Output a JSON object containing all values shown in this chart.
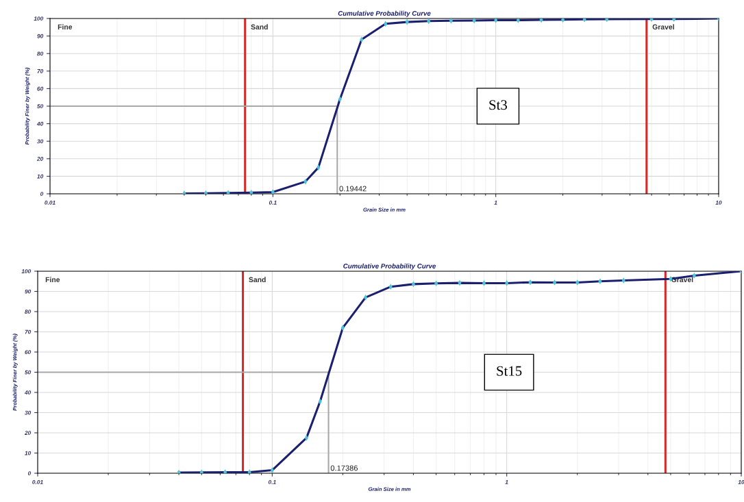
{
  "chart_data": [
    {
      "type": "line",
      "title": "Cumulative Probability Curve",
      "xlabel": "Grain Size in mm",
      "ylabel": "Probability Finer by Weight (%)",
      "log": "x",
      "grid": true,
      "marker": "diamond",
      "line_style": "solid",
      "xlim": [
        0.01,
        10
      ],
      "xticks": [
        0.01,
        0.1,
        1,
        10
      ],
      "ylim": [
        0,
        100
      ],
      "yticks": [
        0,
        10,
        20,
        30,
        40,
        50,
        60,
        70,
        80,
        90,
        100
      ],
      "series": [
        {
          "color": "#1a1f6e",
          "x": [
            0.04,
            0.05,
            0.063,
            0.08,
            0.1,
            0.14,
            0.16,
            0.2,
            0.25,
            0.32,
            0.4,
            0.5,
            0.63,
            0.8,
            1,
            1.26,
            1.6,
            2,
            2.5,
            3.15,
            5,
            6.3,
            10
          ],
          "values": [
            0.2,
            0.3,
            0.5,
            0.7,
            1,
            7,
            15,
            54,
            88,
            97,
            98,
            98.5,
            98.7,
            98.8,
            99,
            99,
            99.2,
            99.3,
            99.5,
            99.6,
            99.7,
            99.7,
            100
          ]
        }
      ],
      "ref_lines": [
        {
          "axis": "x",
          "value": 0.075,
          "label": "Sand",
          "color": "#d42a2a"
        },
        {
          "axis": "x",
          "value": 4.75,
          "label": "Gravel",
          "color": "#d42a2a"
        },
        {
          "axis": "y",
          "value": 50,
          "color": "#a8a8a8"
        },
        {
          "axis": "x",
          "value": 0.19442,
          "color": "#a8a8a8"
        }
      ],
      "annotations": [
        "Fine",
        {
          "text": "0.19442",
          "x": 0.19442,
          "y": 0
        },
        "St3"
      ]
    },
    {
      "type": "line",
      "title": "Cumulative Probability Curve",
      "xlabel": "Grain Size in mm",
      "ylabel": "Probability Finer by Weight (%)",
      "log": "x",
      "grid": true,
      "marker": "diamond",
      "line_style": "solid",
      "xlim": [
        0.01,
        10
      ],
      "xticks": [
        0.01,
        0.1,
        1,
        10
      ],
      "ylim": [
        0,
        100
      ],
      "yticks": [
        0,
        10,
        20,
        30,
        40,
        50,
        60,
        70,
        80,
        90,
        100
      ],
      "series": [
        {
          "color": "#1a1f6e",
          "x": [
            0.04,
            0.05,
            0.063,
            0.08,
            0.1,
            0.14,
            0.16,
            0.2,
            0.25,
            0.32,
            0.4,
            0.5,
            0.63,
            0.8,
            1,
            1.26,
            1.6,
            2,
            2.5,
            3.15,
            5,
            6.3,
            10
          ],
          "values": [
            0.3,
            0.4,
            0.5,
            0.5,
            1.5,
            17.5,
            35.5,
            72,
            87,
            92.3,
            93.6,
            94,
            94.2,
            94.1,
            94.1,
            94.5,
            94.4,
            94.4,
            95,
            95.4,
            96.2,
            97.8,
            100
          ]
        }
      ],
      "ref_lines": [
        {
          "axis": "x",
          "value": 0.075,
          "label": "Sand",
          "color": "#d42a2a"
        },
        {
          "axis": "x",
          "value": 4.75,
          "label": "Gravel",
          "color": "#d42a2a"
        },
        {
          "axis": "y",
          "value": 50,
          "color": "#a8a8a8"
        },
        {
          "axis": "x",
          "value": 0.17386,
          "color": "#a8a8a8"
        }
      ],
      "annotations": [
        "Fine",
        {
          "text": "0.17386",
          "x": 0.17386,
          "y": 0
        },
        "St15"
      ]
    }
  ]
}
